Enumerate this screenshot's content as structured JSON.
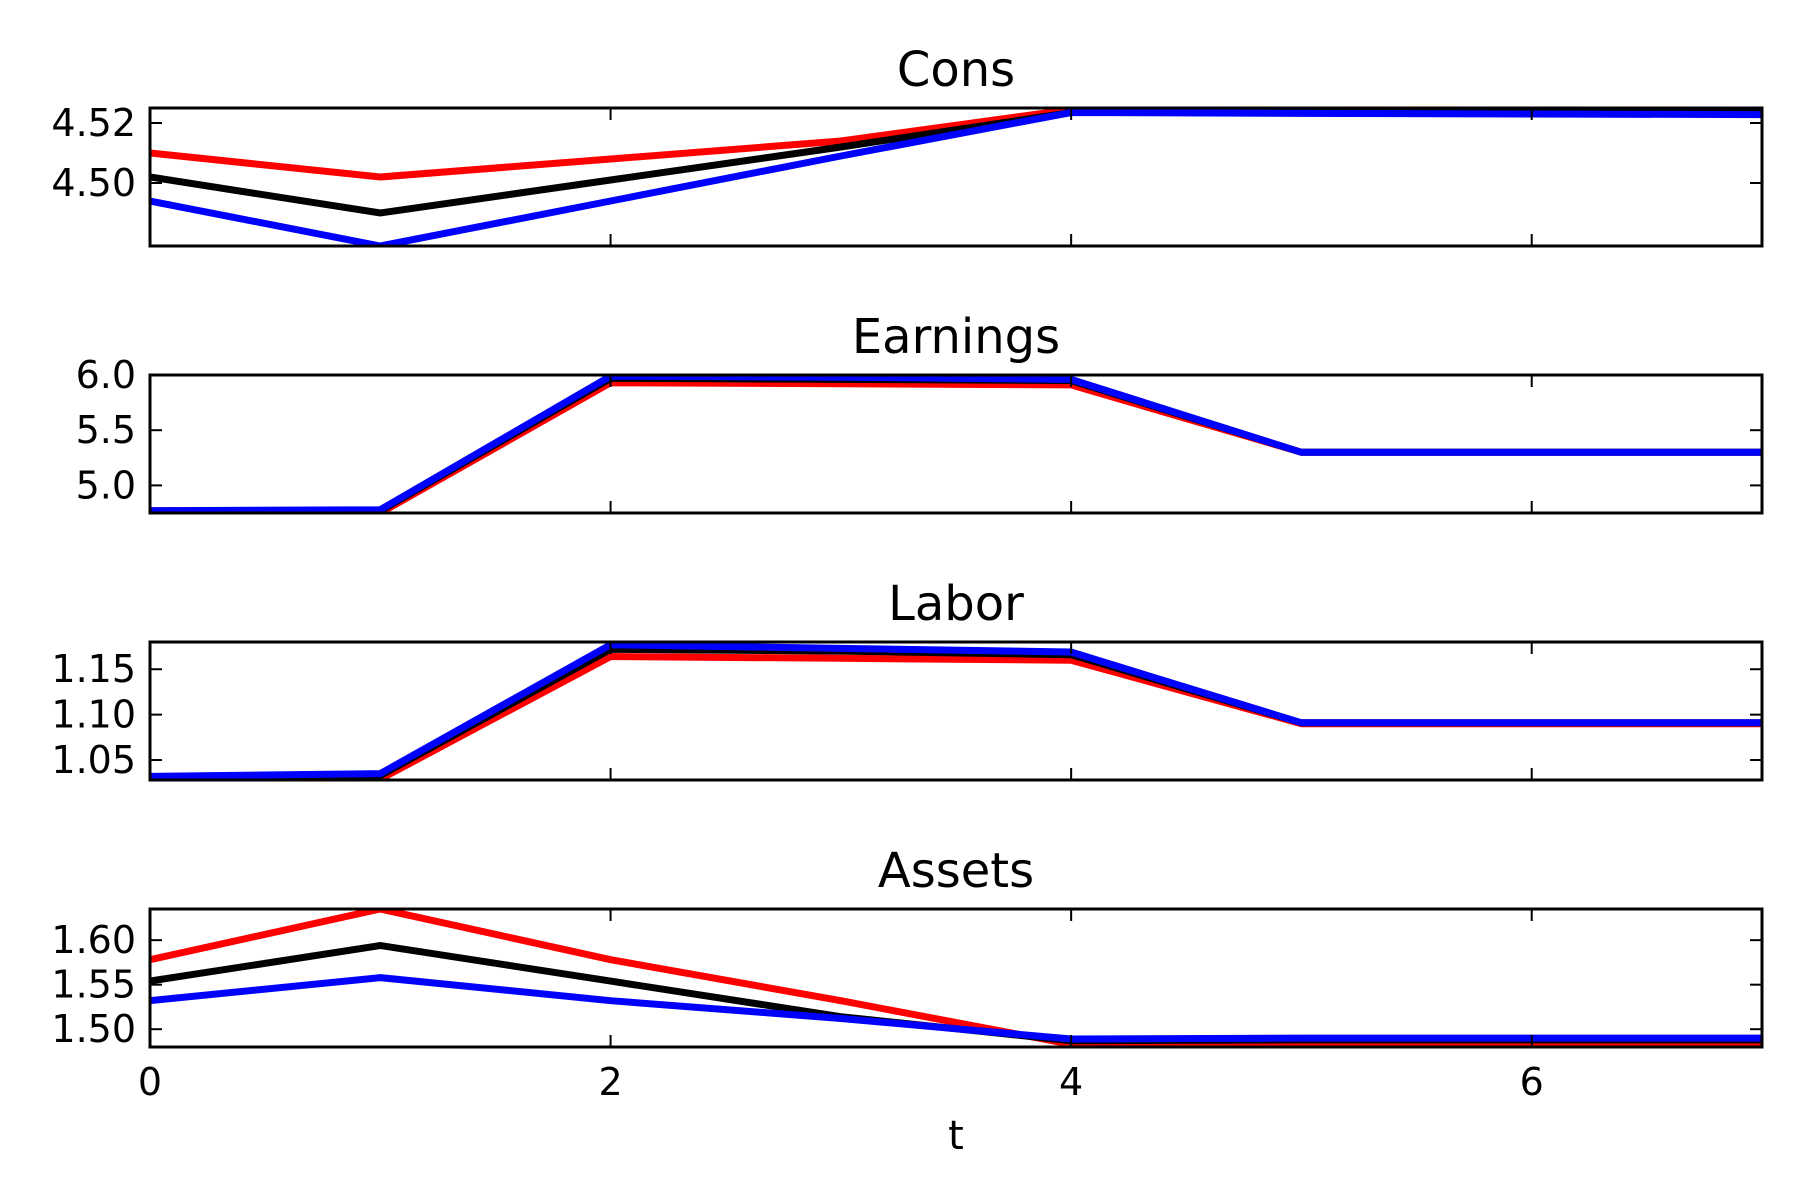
{
  "chart_data": [
    {
      "type": "line",
      "title": "Cons",
      "xlim": [
        0,
        7
      ],
      "ylim": [
        4.479,
        4.525
      ],
      "yticks": [
        4.5,
        4.52
      ],
      "ytick_labels": [
        "4.50",
        "4.52"
      ],
      "x": [
        0,
        1,
        2,
        3,
        4,
        5,
        6,
        7
      ],
      "series": [
        {
          "color": "#ff0000",
          "values": [
            4.51,
            4.502,
            4.508,
            4.514,
            4.5245,
            4.5245,
            4.5245,
            4.5245
          ]
        },
        {
          "color": "#000000",
          "values": [
            4.502,
            4.49,
            4.501,
            4.512,
            4.5235,
            4.5235,
            4.5235,
            4.5235
          ]
        },
        {
          "color": "#0000ff",
          "values": [
            4.494,
            4.479,
            4.494,
            4.509,
            4.5235,
            4.5232,
            4.523,
            4.5228
          ]
        }
      ]
    },
    {
      "type": "line",
      "title": "Earnings",
      "xlim": [
        0,
        7
      ],
      "ylim": [
        4.75,
        6.0
      ],
      "yticks": [
        5.0,
        5.5,
        6.0
      ],
      "ytick_labels": [
        "5.0",
        "5.5",
        "6.0"
      ],
      "x": [
        0,
        1,
        2,
        3,
        4,
        5,
        6,
        7
      ],
      "series": [
        {
          "color": "#ff0000",
          "values": [
            4.76,
            4.75,
            5.93,
            5.92,
            5.91,
            5.3,
            5.3,
            5.3
          ]
        },
        {
          "color": "#000000",
          "values": [
            4.77,
            4.77,
            5.97,
            5.96,
            5.95,
            5.3,
            5.3,
            5.3
          ]
        },
        {
          "color": "#0000ff",
          "values": [
            4.77,
            4.78,
            5.99,
            5.98,
            5.96,
            5.3,
            5.3,
            5.3
          ]
        }
      ]
    },
    {
      "type": "line",
      "title": "Labor",
      "xlim": [
        0,
        7
      ],
      "ylim": [
        1.028,
        1.18
      ],
      "yticks": [
        1.05,
        1.1,
        1.15
      ],
      "ytick_labels": [
        "1.05",
        "1.10",
        "1.15"
      ],
      "x": [
        0,
        1,
        2,
        3,
        4,
        5,
        6,
        7
      ],
      "series": [
        {
          "color": "#ff0000",
          "values": [
            1.03,
            1.029,
            1.164,
            1.162,
            1.16,
            1.09,
            1.09,
            1.09
          ]
        },
        {
          "color": "#000000",
          "values": [
            1.031,
            1.033,
            1.172,
            1.17,
            1.166,
            1.091,
            1.091,
            1.091
          ]
        },
        {
          "color": "#0000ff",
          "values": [
            1.032,
            1.035,
            1.177,
            1.173,
            1.169,
            1.091,
            1.091,
            1.091
          ]
        }
      ]
    },
    {
      "type": "line",
      "title": "Assets",
      "xlim": [
        0,
        7
      ],
      "ylim": [
        1.48,
        1.635
      ],
      "yticks": [
        1.5,
        1.55,
        1.6
      ],
      "ytick_labels": [
        "1.50",
        "1.55",
        "1.60"
      ],
      "x": [
        0,
        1,
        2,
        3,
        4,
        5,
        6,
        7
      ],
      "series": [
        {
          "color": "#ff0000",
          "values": [
            1.578,
            1.635,
            1.578,
            1.532,
            1.483,
            1.484,
            1.484,
            1.484
          ]
        },
        {
          "color": "#000000",
          "values": [
            1.554,
            1.594,
            1.554,
            1.514,
            1.487,
            1.488,
            1.488,
            1.488
          ]
        },
        {
          "color": "#0000ff",
          "values": [
            1.532,
            1.558,
            1.532,
            1.512,
            1.489,
            1.49,
            1.49,
            1.49
          ]
        }
      ]
    }
  ],
  "x_axis": {
    "label": "t",
    "ticks": [
      0,
      2,
      4,
      6
    ],
    "tick_labels": [
      "0",
      "2",
      "4",
      "6"
    ]
  }
}
